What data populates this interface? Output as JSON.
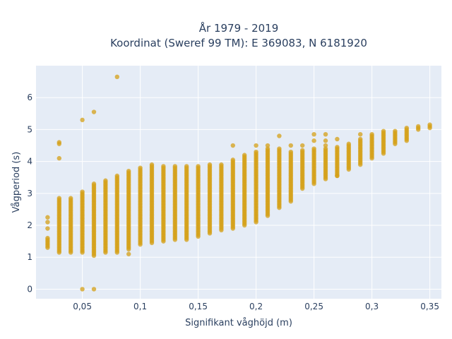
{
  "chart_data": {
    "type": "scatter",
    "title_line1": "År 1979 - 2019",
    "title_line2": "Koordinat (Sweref 99 TM): E 369083, N 6181920",
    "xlabel": "Signifikant våghöjd (m)",
    "ylabel": "Vågperiod (s)",
    "xlim": [
      0.01,
      0.36
    ],
    "ylim": [
      -0.3,
      7.0
    ],
    "x_ticks": [
      0.05,
      0.1,
      0.15,
      0.2,
      0.25,
      0.3,
      0.35
    ],
    "x_tick_labels": [
      "0,05",
      "0,1",
      "0,15",
      "0,2",
      "0,25",
      "0,3",
      "0,35"
    ],
    "y_ticks": [
      0,
      1,
      2,
      3,
      4,
      5,
      6
    ],
    "y_tick_labels": [
      "0",
      "1",
      "2",
      "3",
      "4",
      "5",
      "6"
    ],
    "grid": true,
    "background_color": "#e5ecf6",
    "marker_color": "#d4a017",
    "columns": [
      {
        "x": 0.02,
        "ymin": 1.3,
        "ymax": 1.6
      },
      {
        "x": 0.03,
        "ymin": 1.15,
        "ymax": 2.85
      },
      {
        "x": 0.04,
        "ymin": 1.15,
        "ymax": 2.85
      },
      {
        "x": 0.05,
        "ymin": 1.15,
        "ymax": 3.05
      },
      {
        "x": 0.06,
        "ymin": 1.05,
        "ymax": 3.3
      },
      {
        "x": 0.07,
        "ymin": 1.15,
        "ymax": 3.4
      },
      {
        "x": 0.08,
        "ymin": 1.15,
        "ymax": 3.55
      },
      {
        "x": 0.09,
        "ymin": 1.25,
        "ymax": 3.7
      },
      {
        "x": 0.1,
        "ymin": 1.4,
        "ymax": 3.8
      },
      {
        "x": 0.11,
        "ymin": 1.45,
        "ymax": 3.9
      },
      {
        "x": 0.12,
        "ymin": 1.5,
        "ymax": 3.85
      },
      {
        "x": 0.13,
        "ymin": 1.55,
        "ymax": 3.85
      },
      {
        "x": 0.14,
        "ymin": 1.55,
        "ymax": 3.85
      },
      {
        "x": 0.15,
        "ymin": 1.65,
        "ymax": 3.85
      },
      {
        "x": 0.16,
        "ymin": 1.75,
        "ymax": 3.9
      },
      {
        "x": 0.17,
        "ymin": 1.85,
        "ymax": 3.9
      },
      {
        "x": 0.18,
        "ymin": 1.9,
        "ymax": 4.05
      },
      {
        "x": 0.19,
        "ymin": 2.0,
        "ymax": 4.2
      },
      {
        "x": 0.2,
        "ymin": 2.1,
        "ymax": 4.3
      },
      {
        "x": 0.21,
        "ymin": 2.3,
        "ymax": 4.4
      },
      {
        "x": 0.22,
        "ymin": 2.55,
        "ymax": 4.4
      },
      {
        "x": 0.23,
        "ymin": 2.75,
        "ymax": 4.3
      },
      {
        "x": 0.24,
        "ymin": 3.15,
        "ymax": 4.35
      },
      {
        "x": 0.25,
        "ymin": 3.3,
        "ymax": 4.4
      },
      {
        "x": 0.26,
        "ymin": 3.45,
        "ymax": 4.4
      },
      {
        "x": 0.27,
        "ymin": 3.55,
        "ymax": 4.45
      },
      {
        "x": 0.28,
        "ymin": 3.75,
        "ymax": 4.55
      },
      {
        "x": 0.29,
        "ymin": 3.9,
        "ymax": 4.7
      },
      {
        "x": 0.3,
        "ymin": 4.1,
        "ymax": 4.8
      },
      {
        "x": 0.31,
        "ymin": 4.25,
        "ymax": 4.95
      },
      {
        "x": 0.32,
        "ymin": 4.55,
        "ymax": 4.95
      },
      {
        "x": 0.33,
        "ymin": 4.65,
        "ymax": 5.05
      },
      {
        "x": 0.34,
        "ymin": 5.0,
        "ymax": 5.1
      },
      {
        "x": 0.35,
        "ymin": 5.05,
        "ymax": 5.15
      }
    ],
    "outliers": [
      {
        "x": 0.02,
        "y": 2.25
      },
      {
        "x": 0.02,
        "y": 2.1
      },
      {
        "x": 0.02,
        "y": 1.9
      },
      {
        "x": 0.03,
        "y": 4.6
      },
      {
        "x": 0.03,
        "y": 4.55
      },
      {
        "x": 0.03,
        "y": 4.1
      },
      {
        "x": 0.05,
        "y": 5.3
      },
      {
        "x": 0.05,
        "y": 0.0
      },
      {
        "x": 0.06,
        "y": 5.55
      },
      {
        "x": 0.06,
        "y": 0.0
      },
      {
        "x": 0.08,
        "y": 6.65
      },
      {
        "x": 0.09,
        "y": 1.1
      },
      {
        "x": 0.18,
        "y": 4.5
      },
      {
        "x": 0.2,
        "y": 4.5
      },
      {
        "x": 0.21,
        "y": 4.5
      },
      {
        "x": 0.22,
        "y": 4.8
      },
      {
        "x": 0.23,
        "y": 4.5
      },
      {
        "x": 0.24,
        "y": 4.5
      },
      {
        "x": 0.25,
        "y": 4.85
      },
      {
        "x": 0.25,
        "y": 4.65
      },
      {
        "x": 0.26,
        "y": 4.85
      },
      {
        "x": 0.26,
        "y": 4.65
      },
      {
        "x": 0.26,
        "y": 4.5
      },
      {
        "x": 0.27,
        "y": 4.7
      },
      {
        "x": 0.27,
        "y": 3.55
      },
      {
        "x": 0.29,
        "y": 4.85
      },
      {
        "x": 0.3,
        "y": 4.85
      }
    ]
  }
}
